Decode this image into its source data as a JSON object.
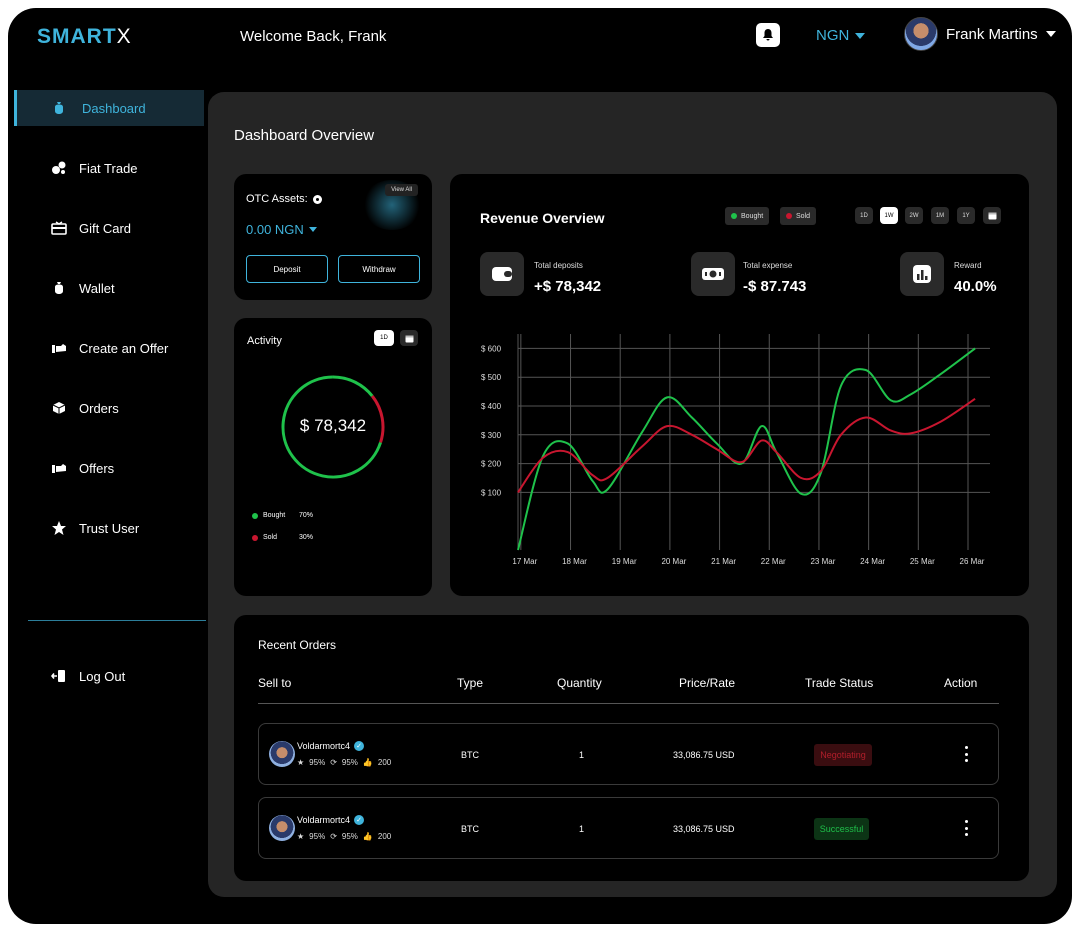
{
  "header": {
    "logo_text": "SMART",
    "logo_x": "X",
    "welcome": "Welcome Back, Frank",
    "currency": "NGN",
    "user_name": "Frank Martins"
  },
  "sidebar": {
    "items": [
      {
        "label": "Dashboard",
        "icon": "money-bag-icon",
        "active": true
      },
      {
        "label": "Fiat Trade",
        "icon": "coins-icon",
        "active": false
      },
      {
        "label": "Gift Card",
        "icon": "gift-card-icon",
        "active": false
      },
      {
        "label": "Wallet",
        "icon": "wallet-bag-icon",
        "active": false
      },
      {
        "label": "Create an Offer",
        "icon": "offer-hand-icon",
        "active": false
      },
      {
        "label": "Orders",
        "icon": "box-icon",
        "active": false
      },
      {
        "label": "Offers",
        "icon": "offer-hand-icon",
        "active": false
      },
      {
        "label": "Trust User",
        "icon": "star-icon",
        "active": false
      }
    ],
    "logout": "Log Out"
  },
  "main": {
    "title": "Dashboard Overview"
  },
  "otc": {
    "label": "OTC Assets:",
    "view_all": "View All",
    "amount": "0.00 NGN",
    "deposit": "Deposit",
    "withdraw": "Withdraw"
  },
  "activity": {
    "title": "Activity",
    "period": "1D",
    "total": "$ 78,342",
    "bought_label": "Bought",
    "bought_pct": "70%",
    "bought_value": 70,
    "sold_label": "Sold",
    "sold_pct": "30%",
    "sold_value": 30
  },
  "revenue": {
    "title": "Revenue Overview",
    "legend_bought": "Bought",
    "legend_sold": "Sold",
    "periods": [
      "1D",
      "1W",
      "2W",
      "1M",
      "1Y"
    ],
    "active_period": "1W",
    "stats": [
      {
        "label": "Total deposits",
        "value": "+$ 78,342",
        "icon": "wallet-icon"
      },
      {
        "label": "Total expense",
        "value": "-$ 87.743",
        "icon": "cash-icon"
      },
      {
        "label": "Reward",
        "value": "40.0%",
        "icon": "bar-chart-icon"
      }
    ]
  },
  "chart_data": {
    "type": "line",
    "title": "",
    "xlabel": "",
    "ylabel": "",
    "x": [
      "17 Mar",
      "18 Mar",
      "19 Mar",
      "20 Mar",
      "21 Mar",
      "22 Mar",
      "23 Mar",
      "24 Mar",
      "25 Mar",
      "26 Mar"
    ],
    "y_ticks": [
      "$ 100",
      "$ 200",
      "$ 300",
      "$ 400",
      "$ 500",
      "$ 600"
    ],
    "ylim": [
      -100,
      650
    ],
    "grid": true,
    "legend": "top",
    "series": [
      {
        "name": "Bought",
        "color": "#1fc24b",
        "points": [
          [
            16.5,
            -100
          ],
          [
            17,
            225
          ],
          [
            17.5,
            270
          ],
          [
            18,
            140
          ],
          [
            18.3,
            110
          ],
          [
            19,
            310
          ],
          [
            19.5,
            430
          ],
          [
            20,
            360
          ],
          [
            20.5,
            270
          ],
          [
            21,
            200
          ],
          [
            21.4,
            330
          ],
          [
            21.7,
            240
          ],
          [
            22.2,
            95
          ],
          [
            22.6,
            170
          ],
          [
            23,
            470
          ],
          [
            23.5,
            525
          ],
          [
            24,
            420
          ],
          [
            24.4,
            440
          ],
          [
            25,
            510
          ],
          [
            25.7,
            600
          ]
        ]
      },
      {
        "name": "Sold",
        "color": "#c8162f",
        "points": [
          [
            16.5,
            100
          ],
          [
            17,
            220
          ],
          [
            17.5,
            240
          ],
          [
            18,
            160
          ],
          [
            18.3,
            150
          ],
          [
            19,
            260
          ],
          [
            19.5,
            330
          ],
          [
            20,
            300
          ],
          [
            20.5,
            250
          ],
          [
            21,
            205
          ],
          [
            21.4,
            280
          ],
          [
            21.7,
            240
          ],
          [
            22.2,
            150
          ],
          [
            22.6,
            175
          ],
          [
            23,
            300
          ],
          [
            23.5,
            360
          ],
          [
            24,
            315
          ],
          [
            24.4,
            305
          ],
          [
            25,
            345
          ],
          [
            25.7,
            425
          ]
        ]
      }
    ]
  },
  "orders": {
    "title": "Recent Orders",
    "headers": [
      "Sell to",
      "Type",
      "Quantity",
      "Price/Rate",
      "Trade Status",
      "Action"
    ],
    "rows": [
      {
        "user": "Voldarmortc4",
        "rating": "95%",
        "completion": "95%",
        "likes": "200",
        "type": "BTC",
        "quantity": "1",
        "price": "33,086.75 USD",
        "status": "Negotiating"
      },
      {
        "user": "Voldarmortc4",
        "rating": "95%",
        "completion": "95%",
        "likes": "200",
        "type": "BTC",
        "quantity": "1",
        "price": "33,086.75 USD",
        "status": "Successful"
      }
    ]
  },
  "colors": {
    "accent": "#3fb4dc",
    "bought": "#1fc24b",
    "sold": "#c8162f",
    "panel": "#252525"
  }
}
